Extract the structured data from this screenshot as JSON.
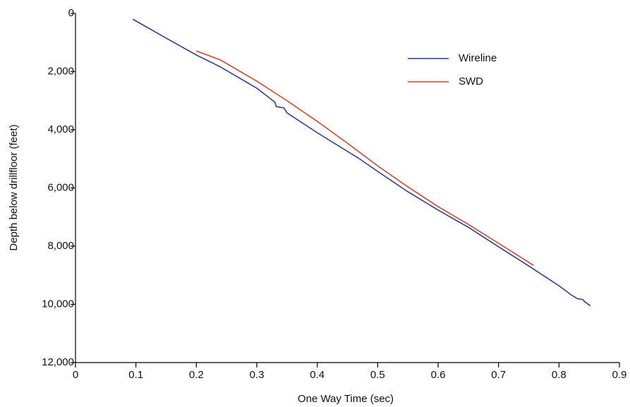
{
  "chart_data": {
    "type": "line",
    "x_label": "One Way Time (sec)",
    "y_label": "Depth below drillfloor (feet)",
    "xlim": [
      0,
      0.9
    ],
    "xticks": [
      0,
      0.1,
      0.2,
      0.3,
      0.4,
      0.5,
      0.6,
      0.7,
      0.8,
      0.9
    ],
    "ylim": [
      0,
      12000
    ],
    "y_inverted": true,
    "yticks": [
      0,
      {
        "value": 2000,
        "label": "2,000"
      },
      {
        "value": 4000,
        "label": "4,000"
      },
      {
        "value": 6000,
        "label": "6,000"
      },
      {
        "value": 8000,
        "label": "8,000"
      },
      {
        "value": 10000,
        "label": "10,000"
      },
      {
        "value": 12000,
        "label": "12,000"
      }
    ],
    "legend": "upper right",
    "series": [
      {
        "name": "Wireline",
        "color": "#2f3f8f",
        "x": [
          0.095,
          0.15,
          0.2,
          0.24,
          0.3,
          0.33,
          0.332,
          0.345,
          0.35,
          0.4,
          0.47,
          0.5,
          0.55,
          0.6,
          0.65,
          0.7,
          0.75,
          0.8,
          0.82,
          0.83,
          0.84,
          0.842,
          0.852
        ],
        "values": [
          200,
          850,
          1430,
          1840,
          2570,
          3050,
          3200,
          3250,
          3420,
          4100,
          5000,
          5430,
          6130,
          6760,
          7350,
          8020,
          8680,
          9360,
          9670,
          9800,
          9840,
          9900,
          10050
        ]
      },
      {
        "name": "SWD",
        "color": "#d4462a",
        "x": [
          0.2,
          0.24,
          0.3,
          0.35,
          0.4,
          0.45,
          0.5,
          0.55,
          0.6,
          0.65,
          0.7,
          0.758
        ],
        "values": [
          1290,
          1600,
          2330,
          3000,
          3710,
          4460,
          5240,
          5960,
          6640,
          7250,
          7900,
          8660
        ]
      }
    ]
  }
}
